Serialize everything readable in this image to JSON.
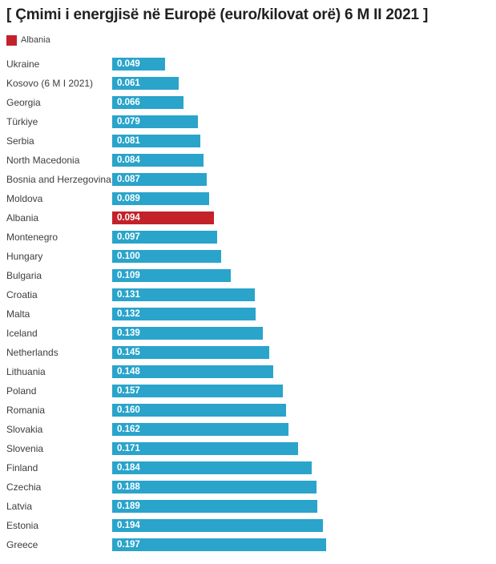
{
  "title": "[ Çmimi i energjisë në Europë (euro/kilovat orë) 6 M II 2021 ]",
  "legend": {
    "label": "Albania",
    "swatch_color": "#c3222a"
  },
  "colors": {
    "bar": "#2aa4cb",
    "highlight": "#c3222a",
    "value_text": "#ffffff",
    "title_text": "#212121",
    "label_text": "#3d3d3d"
  },
  "chart_data": {
    "type": "bar",
    "orientation": "horizontal",
    "title": "[ Çmimi i energjisë në Europë (euro/kilovat orë) 6 M II 2021 ]",
    "legend_entries": [
      "Albania"
    ],
    "legend_position": "top-left",
    "grid": false,
    "value_format": "0.000",
    "xlim": [
      0,
      0.2
    ],
    "highlight_category": "Albania",
    "categories": [
      "Ukraine",
      "Kosovo (6 M I 2021)",
      "Georgia",
      "Türkiye",
      "Serbia",
      "North Macedonia",
      "Bosnia and Herzegovina",
      "Moldova",
      "Albania",
      "Montenegro",
      "Hungary",
      "Bulgaria",
      "Croatia",
      "Malta",
      "Iceland",
      "Netherlands",
      "Lithuania",
      "Poland",
      "Romania",
      "Slovakia",
      "Slovenia",
      "Finland",
      "Czechia",
      "Latvia",
      "Estonia",
      "Greece"
    ],
    "values": [
      0.049,
      0.061,
      0.066,
      0.079,
      0.081,
      0.084,
      0.087,
      0.089,
      0.094,
      0.097,
      0.1,
      0.109,
      0.131,
      0.132,
      0.139,
      0.145,
      0.148,
      0.157,
      0.16,
      0.162,
      0.171,
      0.184,
      0.188,
      0.189,
      0.194,
      0.197
    ]
  }
}
